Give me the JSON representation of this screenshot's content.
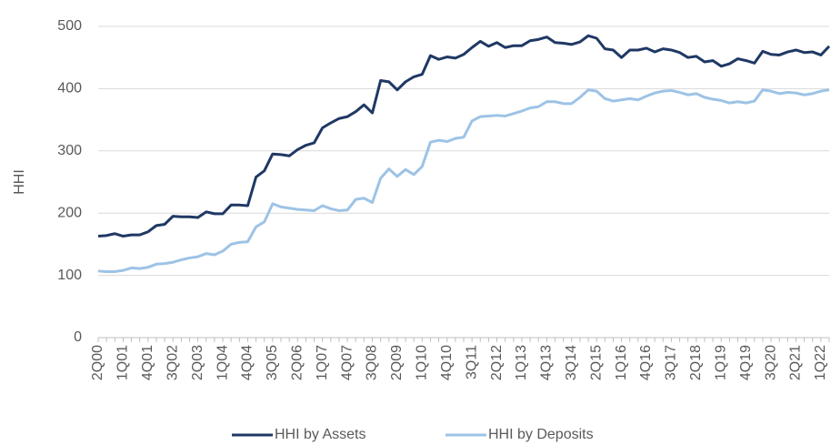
{
  "chart_data": {
    "type": "line",
    "y_label": "HHI",
    "categories": [
      "2Q00",
      null,
      null,
      "1Q01",
      null,
      null,
      "4Q01",
      null,
      null,
      "3Q02",
      null,
      null,
      "2Q03",
      null,
      null,
      "1Q04",
      null,
      null,
      "4Q04",
      null,
      null,
      "3Q05",
      null,
      null,
      "2Q06",
      null,
      null,
      "1Q07",
      null,
      null,
      "4Q07",
      null,
      null,
      "3Q08",
      null,
      null,
      "2Q09",
      null,
      null,
      "1Q10",
      null,
      null,
      "4Q10",
      null,
      null,
      "3Q11",
      null,
      null,
      "2Q12",
      null,
      null,
      "1Q13",
      null,
      null,
      "4Q13",
      null,
      null,
      "3Q14",
      null,
      null,
      "2Q15",
      null,
      null,
      "1Q16",
      null,
      null,
      "4Q16",
      null,
      null,
      "3Q17",
      null,
      null,
      "2Q18",
      null,
      null,
      "1Q19",
      null,
      null,
      "4Q19",
      null,
      null,
      "3Q20",
      null,
      null,
      "2Q21",
      null,
      null,
      "1Q22",
      null
    ],
    "series": [
      {
        "name": "HHI by Assets",
        "color": "#1f3864",
        "values": [
          163,
          164,
          167,
          163,
          165,
          165,
          170,
          180,
          182,
          195,
          194,
          194,
          193,
          202,
          199,
          199,
          213,
          213,
          212,
          258,
          268,
          295,
          294,
          292,
          302,
          309,
          313,
          337,
          345,
          352,
          355,
          363,
          374,
          361,
          413,
          411,
          398,
          411,
          419,
          423,
          453,
          447,
          451,
          449,
          455,
          466,
          476,
          468,
          474,
          466,
          469,
          469,
          477,
          479,
          483,
          474,
          473,
          471,
          475,
          485,
          481,
          464,
          462,
          450,
          462,
          462,
          465,
          459,
          464,
          462,
          458,
          450,
          452,
          443,
          445,
          436,
          440,
          448,
          445,
          441,
          460,
          455,
          454,
          459,
          462,
          458,
          459,
          454,
          468
        ]
      },
      {
        "name": "HHI by Deposits",
        "color": "#9dc3e6",
        "values": [
          107,
          106,
          106,
          108,
          112,
          111,
          113,
          118,
          119,
          121,
          125,
          128,
          130,
          135,
          133,
          139,
          150,
          153,
          154,
          178,
          186,
          215,
          210,
          208,
          206,
          205,
          204,
          212,
          207,
          204,
          205,
          222,
          224,
          217,
          256,
          271,
          259,
          270,
          262,
          275,
          314,
          317,
          315,
          320,
          322,
          348,
          355,
          356,
          357,
          356,
          360,
          364,
          369,
          371,
          379,
          379,
          376,
          376,
          386,
          398,
          396,
          384,
          380,
          382,
          384,
          382,
          388,
          393,
          396,
          397,
          394,
          390,
          392,
          386,
          383,
          381,
          377,
          379,
          377,
          380,
          398,
          396,
          392,
          394,
          393,
          390,
          392,
          396,
          398
        ]
      }
    ],
    "ylim": [
      0,
      500
    ],
    "yticks": [
      0,
      100,
      200,
      300,
      400,
      500
    ],
    "grid": true,
    "legend": "bottom"
  }
}
